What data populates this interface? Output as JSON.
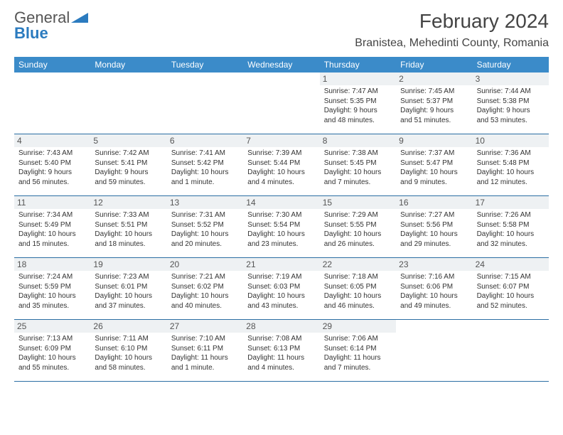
{
  "logo": {
    "word1": "General",
    "word2": "Blue"
  },
  "title": "February 2024",
  "location": "Branistea, Mehedinti County, Romania",
  "colors": {
    "header_bg": "#3b8bc9",
    "header_text": "#ffffff",
    "daynum_bg": "#eef1f3",
    "week_border": "#2b6ea3",
    "logo_blue": "#2b7bbf"
  },
  "dayHeaders": [
    "Sunday",
    "Monday",
    "Tuesday",
    "Wednesday",
    "Thursday",
    "Friday",
    "Saturday"
  ],
  "weeks": [
    [
      null,
      null,
      null,
      null,
      {
        "n": "1",
        "sr": "Sunrise: 7:47 AM",
        "ss": "Sunset: 5:35 PM",
        "dl1": "Daylight: 9 hours",
        "dl2": "and 48 minutes."
      },
      {
        "n": "2",
        "sr": "Sunrise: 7:45 AM",
        "ss": "Sunset: 5:37 PM",
        "dl1": "Daylight: 9 hours",
        "dl2": "and 51 minutes."
      },
      {
        "n": "3",
        "sr": "Sunrise: 7:44 AM",
        "ss": "Sunset: 5:38 PM",
        "dl1": "Daylight: 9 hours",
        "dl2": "and 53 minutes."
      }
    ],
    [
      {
        "n": "4",
        "sr": "Sunrise: 7:43 AM",
        "ss": "Sunset: 5:40 PM",
        "dl1": "Daylight: 9 hours",
        "dl2": "and 56 minutes."
      },
      {
        "n": "5",
        "sr": "Sunrise: 7:42 AM",
        "ss": "Sunset: 5:41 PM",
        "dl1": "Daylight: 9 hours",
        "dl2": "and 59 minutes."
      },
      {
        "n": "6",
        "sr": "Sunrise: 7:41 AM",
        "ss": "Sunset: 5:42 PM",
        "dl1": "Daylight: 10 hours",
        "dl2": "and 1 minute."
      },
      {
        "n": "7",
        "sr": "Sunrise: 7:39 AM",
        "ss": "Sunset: 5:44 PM",
        "dl1": "Daylight: 10 hours",
        "dl2": "and 4 minutes."
      },
      {
        "n": "8",
        "sr": "Sunrise: 7:38 AM",
        "ss": "Sunset: 5:45 PM",
        "dl1": "Daylight: 10 hours",
        "dl2": "and 7 minutes."
      },
      {
        "n": "9",
        "sr": "Sunrise: 7:37 AM",
        "ss": "Sunset: 5:47 PM",
        "dl1": "Daylight: 10 hours",
        "dl2": "and 9 minutes."
      },
      {
        "n": "10",
        "sr": "Sunrise: 7:36 AM",
        "ss": "Sunset: 5:48 PM",
        "dl1": "Daylight: 10 hours",
        "dl2": "and 12 minutes."
      }
    ],
    [
      {
        "n": "11",
        "sr": "Sunrise: 7:34 AM",
        "ss": "Sunset: 5:49 PM",
        "dl1": "Daylight: 10 hours",
        "dl2": "and 15 minutes."
      },
      {
        "n": "12",
        "sr": "Sunrise: 7:33 AM",
        "ss": "Sunset: 5:51 PM",
        "dl1": "Daylight: 10 hours",
        "dl2": "and 18 minutes."
      },
      {
        "n": "13",
        "sr": "Sunrise: 7:31 AM",
        "ss": "Sunset: 5:52 PM",
        "dl1": "Daylight: 10 hours",
        "dl2": "and 20 minutes."
      },
      {
        "n": "14",
        "sr": "Sunrise: 7:30 AM",
        "ss": "Sunset: 5:54 PM",
        "dl1": "Daylight: 10 hours",
        "dl2": "and 23 minutes."
      },
      {
        "n": "15",
        "sr": "Sunrise: 7:29 AM",
        "ss": "Sunset: 5:55 PM",
        "dl1": "Daylight: 10 hours",
        "dl2": "and 26 minutes."
      },
      {
        "n": "16",
        "sr": "Sunrise: 7:27 AM",
        "ss": "Sunset: 5:56 PM",
        "dl1": "Daylight: 10 hours",
        "dl2": "and 29 minutes."
      },
      {
        "n": "17",
        "sr": "Sunrise: 7:26 AM",
        "ss": "Sunset: 5:58 PM",
        "dl1": "Daylight: 10 hours",
        "dl2": "and 32 minutes."
      }
    ],
    [
      {
        "n": "18",
        "sr": "Sunrise: 7:24 AM",
        "ss": "Sunset: 5:59 PM",
        "dl1": "Daylight: 10 hours",
        "dl2": "and 35 minutes."
      },
      {
        "n": "19",
        "sr": "Sunrise: 7:23 AM",
        "ss": "Sunset: 6:01 PM",
        "dl1": "Daylight: 10 hours",
        "dl2": "and 37 minutes."
      },
      {
        "n": "20",
        "sr": "Sunrise: 7:21 AM",
        "ss": "Sunset: 6:02 PM",
        "dl1": "Daylight: 10 hours",
        "dl2": "and 40 minutes."
      },
      {
        "n": "21",
        "sr": "Sunrise: 7:19 AM",
        "ss": "Sunset: 6:03 PM",
        "dl1": "Daylight: 10 hours",
        "dl2": "and 43 minutes."
      },
      {
        "n": "22",
        "sr": "Sunrise: 7:18 AM",
        "ss": "Sunset: 6:05 PM",
        "dl1": "Daylight: 10 hours",
        "dl2": "and 46 minutes."
      },
      {
        "n": "23",
        "sr": "Sunrise: 7:16 AM",
        "ss": "Sunset: 6:06 PM",
        "dl1": "Daylight: 10 hours",
        "dl2": "and 49 minutes."
      },
      {
        "n": "24",
        "sr": "Sunrise: 7:15 AM",
        "ss": "Sunset: 6:07 PM",
        "dl1": "Daylight: 10 hours",
        "dl2": "and 52 minutes."
      }
    ],
    [
      {
        "n": "25",
        "sr": "Sunrise: 7:13 AM",
        "ss": "Sunset: 6:09 PM",
        "dl1": "Daylight: 10 hours",
        "dl2": "and 55 minutes."
      },
      {
        "n": "26",
        "sr": "Sunrise: 7:11 AM",
        "ss": "Sunset: 6:10 PM",
        "dl1": "Daylight: 10 hours",
        "dl2": "and 58 minutes."
      },
      {
        "n": "27",
        "sr": "Sunrise: 7:10 AM",
        "ss": "Sunset: 6:11 PM",
        "dl1": "Daylight: 11 hours",
        "dl2": "and 1 minute."
      },
      {
        "n": "28",
        "sr": "Sunrise: 7:08 AM",
        "ss": "Sunset: 6:13 PM",
        "dl1": "Daylight: 11 hours",
        "dl2": "and 4 minutes."
      },
      {
        "n": "29",
        "sr": "Sunrise: 7:06 AM",
        "ss": "Sunset: 6:14 PM",
        "dl1": "Daylight: 11 hours",
        "dl2": "and 7 minutes."
      },
      null,
      null
    ]
  ]
}
